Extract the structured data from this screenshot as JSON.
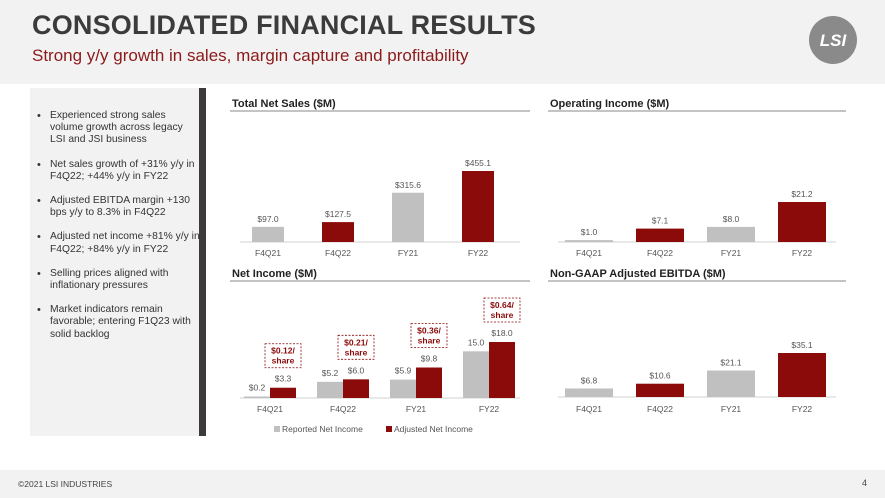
{
  "header": {
    "title": "CONSOLIDATED FINANCIAL RESULTS",
    "subtitle": "Strong y/y growth in sales, margin capture and profitability",
    "logo_text": "LSI"
  },
  "bullets": [
    "Experienced strong sales volume growth across legacy LSI and JSI business",
    "Net sales growth of +31% y/y in F4Q22; +44% y/y in FY22",
    "Adjusted EBITDA margin +130 bps y/y to 8.3% in F4Q22",
    "Adjusted net income +81% y/y in F4Q22; +84% y/y in FY22",
    "Selling prices aligned with inflationary pressures",
    "Market indicators remain favorable; entering F1Q23 with solid backlog"
  ],
  "footer": {
    "copyright": "©2021 LSI INDUSTRIES",
    "page_number": "4"
  },
  "colors": {
    "gray_bar": "#c0c0c0",
    "red_bar": "#8b0a0a",
    "subtitle_red": "#8b1a1a"
  },
  "chart_data": [
    {
      "type": "bar",
      "title": "Total Net Sales ($M)",
      "categories": [
        "F4Q21",
        "F4Q22",
        "FY21",
        "FY22"
      ],
      "values": [
        97.0,
        127.5,
        315.6,
        455.1
      ],
      "labels": [
        "$97.0",
        "$127.5",
        "$315.6",
        "$455.1"
      ],
      "colors": [
        "gray",
        "red",
        "gray",
        "red"
      ],
      "ylim": [
        0,
        455.1
      ]
    },
    {
      "type": "bar",
      "title": "Operating Income ($M)",
      "categories": [
        "F4Q21",
        "F4Q22",
        "FY21",
        "FY22"
      ],
      "values": [
        1.0,
        7.1,
        8.0,
        21.2
      ],
      "labels": [
        "$1.0",
        "$7.1",
        "$8.0",
        "$21.2"
      ],
      "colors": [
        "gray",
        "red",
        "gray",
        "red"
      ],
      "ylim": [
        0,
        21.2
      ]
    },
    {
      "type": "bar",
      "title": "Net Income ($M)",
      "categories": [
        "F4Q21",
        "F4Q22",
        "FY21",
        "FY22"
      ],
      "series": [
        {
          "name": "Reported Net Income",
          "color": "gray",
          "values": [
            0.2,
            5.2,
            5.9,
            15.0
          ],
          "labels": [
            "$0.2",
            "$5.2",
            "$5.9",
            "15.0"
          ]
        },
        {
          "name": "Adjusted Net Income",
          "color": "red",
          "values": [
            3.3,
            6.0,
            9.8,
            18.0
          ],
          "labels": [
            "$3.3",
            "$6.0",
            "$9.8",
            "$18.0"
          ]
        }
      ],
      "annotations": [
        {
          "category": "F4Q21",
          "line1": "$0.12/",
          "line2": "share"
        },
        {
          "category": "F4Q22",
          "line1": "$0.21/",
          "line2": "share"
        },
        {
          "category": "FY21",
          "line1": "$0.36/",
          "line2": "share"
        },
        {
          "category": "FY22",
          "line1": "$0.64/",
          "line2": "share"
        }
      ],
      "ylim": [
        0,
        18.0
      ],
      "legend": "bottom"
    },
    {
      "type": "bar",
      "title": "Non-GAAP Adjusted EBITDA ($M)",
      "categories": [
        "F4Q21",
        "F4Q22",
        "FY21",
        "FY22"
      ],
      "values": [
        6.8,
        10.6,
        21.1,
        35.1
      ],
      "labels": [
        "$6.8",
        "$10.6",
        "$21.1",
        "$35.1"
      ],
      "colors": [
        "gray",
        "red",
        "gray",
        "red"
      ],
      "ylim": [
        0,
        35.1
      ]
    }
  ]
}
